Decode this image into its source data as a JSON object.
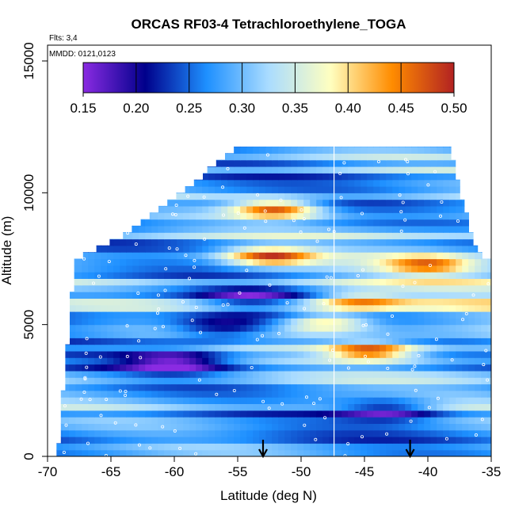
{
  "chart_data": {
    "type": "heatmap",
    "title": "ORCAS RF03-4 Tetrachloroethylene_TOGA",
    "xlabel": "Latitude (deg N)",
    "ylabel": "Altitude (m)",
    "xlim": [
      -70,
      -35
    ],
    "ylim": [
      0,
      15600
    ],
    "x_ticks": [
      -70,
      -65,
      -60,
      -55,
      -50,
      -45,
      -40,
      -35
    ],
    "y_ticks": [
      0,
      5000,
      10000,
      15000
    ],
    "annotations": {
      "flights": "Flts: 3,4",
      "dates": "MMDD: 0121,0123"
    },
    "colorbar": {
      "min": 0.15,
      "max": 0.5,
      "ticks": [
        0.15,
        0.2,
        0.25,
        0.3,
        0.35,
        0.4,
        0.45,
        0.5
      ],
      "tick_labels": [
        "0.15",
        "0.20",
        "0.25",
        "0.30",
        "0.35",
        "0.40",
        "0.45",
        "0.50"
      ],
      "colors": [
        "#8a2be2",
        "#00008b",
        "#1e90ff",
        "#aadcff",
        "#ffffc0",
        "#ff8c00",
        "#b22222"
      ]
    },
    "cross_section_envelope": [
      [
        -69.3,
        600
      ],
      [
        -68.0,
        7500
      ],
      [
        -64.5,
        8300
      ],
      [
        -60.5,
        9700
      ],
      [
        -55.0,
        11800
      ],
      [
        -38.5,
        11800
      ],
      [
        -36.5,
        8000
      ],
      [
        -35.0,
        7200
      ]
    ],
    "reference_line_lat": -47.4,
    "marker_lats": [
      -53.0,
      -41.4
    ],
    "high_value_features": [
      {
        "lat": -52.0,
        "alt": 9400,
        "value": 0.49
      },
      {
        "lat": -52.5,
        "alt": 7600,
        "value": 0.47
      },
      {
        "lat": -48.0,
        "alt": 5100,
        "value": 0.43
      },
      {
        "lat": -44.5,
        "alt": 4000,
        "value": 0.47
      },
      {
        "lat": -45.5,
        "alt": 5900,
        "value": 0.41
      },
      {
        "lat": -40.0,
        "alt": 7300,
        "value": 0.43
      }
    ],
    "low_value_features": [
      {
        "lat": -60.0,
        "alt": 3600,
        "value": 0.19
      },
      {
        "lat": -43.0,
        "alt": 1800,
        "value": 0.2
      },
      {
        "lat": -56.0,
        "alt": 4900,
        "value": 0.2
      },
      {
        "lat": -54.0,
        "alt": 6000,
        "value": 0.21
      }
    ]
  }
}
